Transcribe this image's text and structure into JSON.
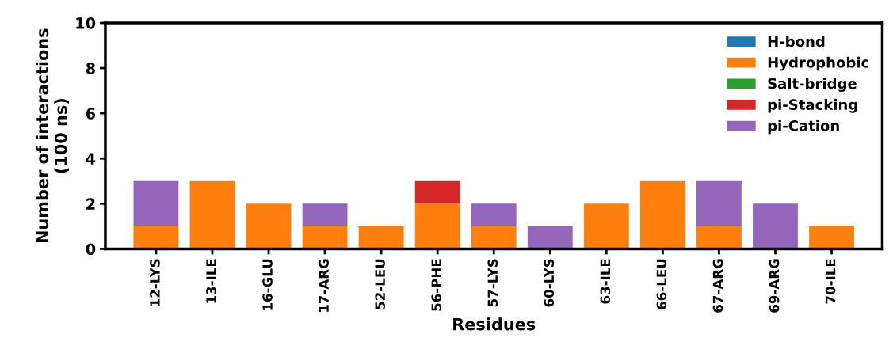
{
  "chart_data": {
    "type": "bar",
    "stacked": true,
    "xlabel": "Residues",
    "ylabel": "Number of interactions\n(100 ns)",
    "categories": [
      "12-LYS",
      "13-ILE",
      "16-GLU",
      "17-ARG",
      "52-LEU",
      "56-PHE",
      "57-LYS",
      "60-LYS",
      "63-ILE",
      "66-LEU",
      "67-ARG",
      "69-ARG",
      "70-ILE"
    ],
    "series": [
      {
        "name": "H-bond",
        "color": "#1f77b4",
        "values": [
          0,
          0,
          0,
          0,
          0,
          0,
          0,
          0,
          0,
          0,
          0,
          0,
          0
        ]
      },
      {
        "name": "Hydrophobic",
        "color": "#ff7f0e",
        "values": [
          1,
          3,
          2,
          1,
          1,
          2,
          1,
          0,
          2,
          3,
          1,
          0,
          1
        ]
      },
      {
        "name": "Salt-bridge",
        "color": "#2ca02c",
        "values": [
          0,
          0,
          0,
          0,
          0,
          0,
          0,
          0,
          0,
          0,
          0,
          0,
          0
        ]
      },
      {
        "name": "pi-Stacking",
        "color": "#d62728",
        "values": [
          0,
          0,
          0,
          0,
          0,
          1,
          0,
          0,
          0,
          0,
          0,
          0,
          0
        ]
      },
      {
        "name": "pi-Cation",
        "color": "#9467bd",
        "values": [
          2,
          0,
          0,
          1,
          0,
          0,
          1,
          1,
          0,
          0,
          2,
          2,
          0
        ]
      }
    ],
    "ylim": [
      0,
      10
    ],
    "yticks": [
      0,
      2,
      4,
      6,
      8,
      10
    ],
    "grid": false,
    "legend": "top right"
  }
}
